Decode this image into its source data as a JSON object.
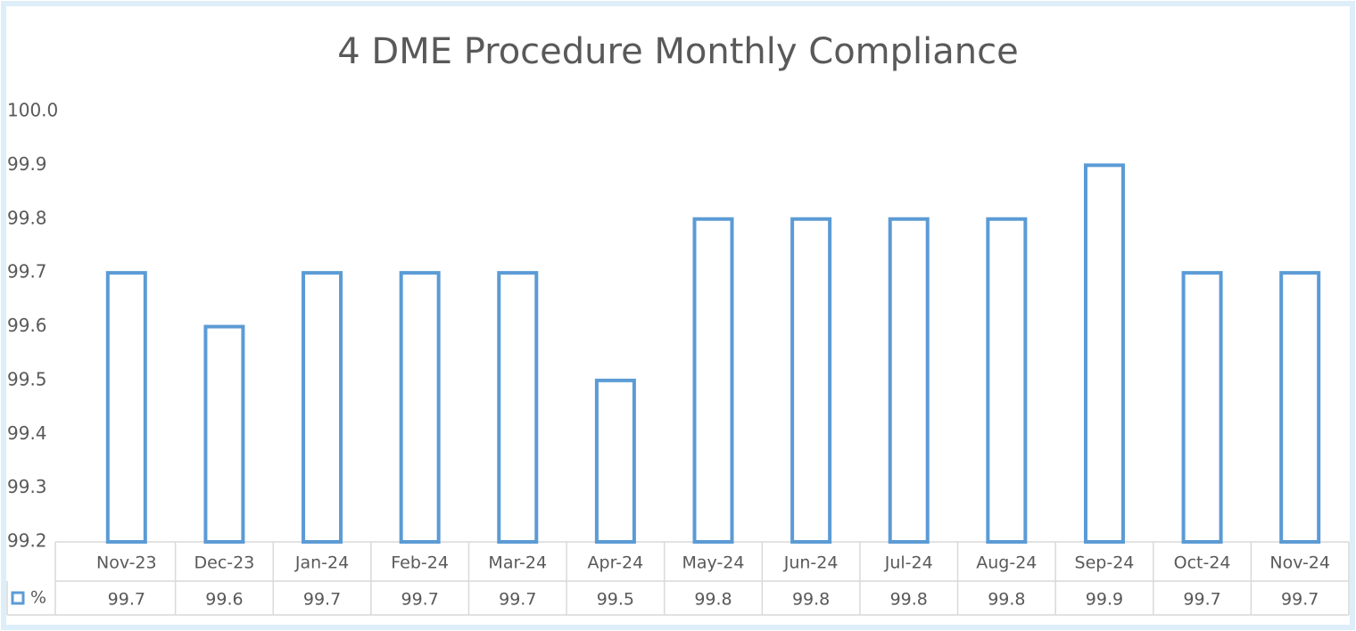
{
  "chart_data": {
    "type": "bar",
    "title": "4 DME Procedure Monthly Compliance",
    "categories": [
      "Nov-23",
      "Dec-23",
      "Jan-24",
      "Feb-24",
      "Mar-24",
      "Apr-24",
      "May-24",
      "Jun-24",
      "Jul-24",
      "Aug-24",
      "Sep-24",
      "Oct-24",
      "Nov-24"
    ],
    "series": [
      {
        "name": "%",
        "color": "#5b9bd5",
        "values": [
          99.7,
          99.6,
          99.7,
          99.7,
          99.7,
          99.5,
          99.8,
          99.8,
          99.8,
          99.8,
          99.9,
          99.7,
          99.7
        ]
      }
    ],
    "ylim": [
      99.2,
      100
    ],
    "yticks": [
      99.2,
      99.3,
      99.4,
      99.5,
      99.6,
      99.7,
      99.8,
      99.9,
      {
        "value": 100,
        "label": "100.0"
      }
    ],
    "grid": false,
    "data_table": true
  }
}
